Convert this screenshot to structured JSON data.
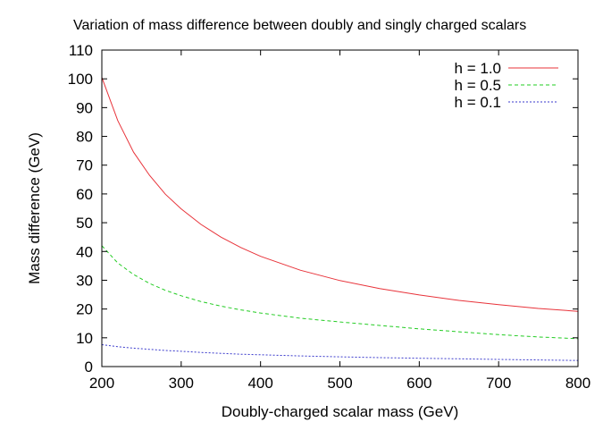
{
  "chart_data": {
    "type": "line",
    "title": "Variation of mass difference between doubly and singly charged scalars",
    "xlabel": "Doubly-charged scalar mass (GeV)",
    "ylabel": "Mass difference (GeV)",
    "xlim": [
      200,
      800
    ],
    "ylim": [
      0,
      110
    ],
    "xticks": [
      200,
      300,
      400,
      500,
      600,
      700,
      800
    ],
    "yticks": [
      0,
      10,
      20,
      30,
      40,
      50,
      60,
      70,
      80,
      90,
      100,
      110
    ],
    "grid": false,
    "legend_position": "top-right",
    "x": [
      200,
      220,
      240,
      260,
      280,
      300,
      325,
      350,
      375,
      400,
      450,
      500,
      550,
      600,
      650,
      700,
      750,
      800
    ],
    "series": [
      {
        "name": "h = 1.0",
        "color": "#e8333a",
        "dash": "solid",
        "values": [
          100.5,
          85.5,
          74.5,
          66.5,
          59.9,
          54.8,
          49.4,
          45.0,
          41.4,
          38.3,
          33.5,
          29.9,
          27.1,
          24.9,
          23.0,
          21.5,
          20.2,
          19.2
        ]
      },
      {
        "name": "h = 0.5",
        "color": "#22cc22",
        "dash": "dashed",
        "values": [
          42.0,
          36.0,
          32.0,
          28.9,
          26.5,
          24.6,
          22.6,
          21.0,
          19.7,
          18.6,
          16.8,
          15.5,
          14.3,
          13.1,
          12.1,
          11.1,
          10.3,
          9.7
        ]
      },
      {
        "name": "h = 0.1",
        "color": "#3a3acc",
        "dash": "dotted",
        "values": [
          7.6,
          6.9,
          6.4,
          6.0,
          5.6,
          5.3,
          4.9,
          4.6,
          4.3,
          4.1,
          3.7,
          3.4,
          3.1,
          2.9,
          2.7,
          2.5,
          2.3,
          2.1
        ]
      }
    ]
  }
}
